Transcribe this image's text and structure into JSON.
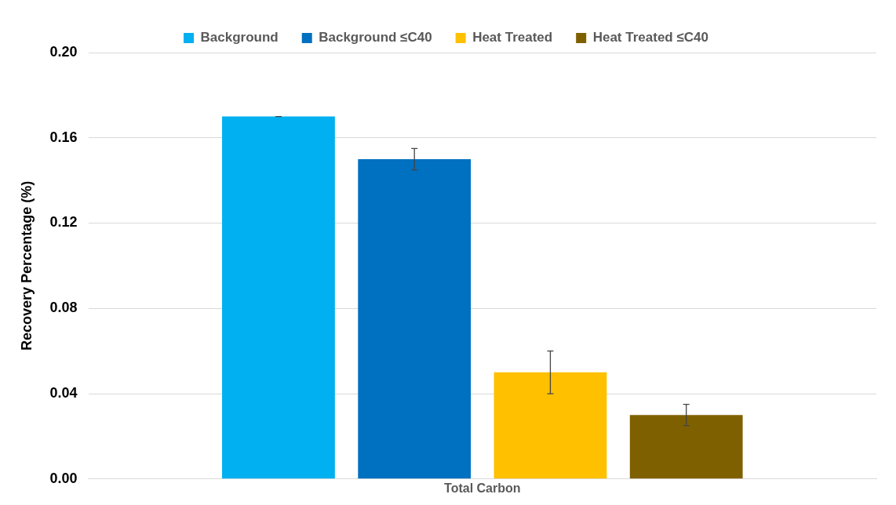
{
  "chart_data": {
    "type": "bar",
    "ylabel": "Recovery Percentage (%)",
    "categories": [
      "Total Carbon"
    ],
    "series": [
      {
        "name": "Background",
        "color": "#00b0f0",
        "values": [
          0.17
        ],
        "errors": [
          0
        ]
      },
      {
        "name": "Background ≤C40",
        "color": "#0070c0",
        "values": [
          0.15
        ],
        "errors": [
          0.005
        ]
      },
      {
        "name": "Heat Treated",
        "color": "#ffc000",
        "values": [
          0.05
        ],
        "errors": [
          0.01
        ]
      },
      {
        "name": "Heat Treated ≤C40",
        "color": "#7f6000",
        "values": [
          0.03
        ],
        "errors": [
          0.005
        ]
      }
    ],
    "ylim": [
      0,
      0.2
    ],
    "yticks": [
      {
        "value": 0,
        "label": "0.00"
      },
      {
        "value": 0.04,
        "label": "0.04"
      },
      {
        "value": 0.08,
        "label": "0.08"
      },
      {
        "value": 0.12,
        "label": "0.12"
      },
      {
        "value": 0.16,
        "label": "0.16"
      },
      {
        "value": 0.2,
        "label": "0.20"
      }
    ],
    "grid": "y",
    "legend": "top"
  }
}
